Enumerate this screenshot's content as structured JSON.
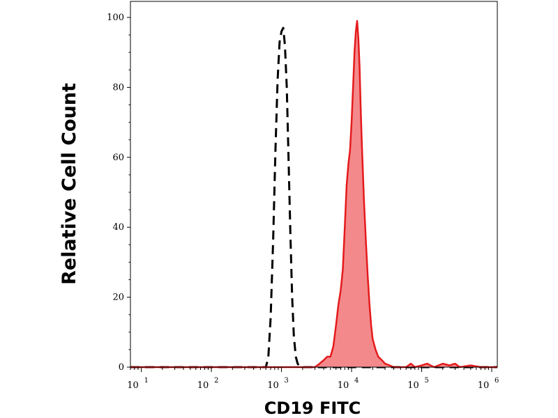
{
  "chart_data": {
    "type": "area",
    "title": "",
    "xlabel": "CD19 FITC",
    "ylabel": "Relative Cell Count",
    "x_scale": "log10",
    "xlim": [
      7,
      1200000
    ],
    "ylim": [
      0,
      100
    ],
    "x_ticks": [
      {
        "base": "10",
        "exp": "1",
        "value": 10
      },
      {
        "base": "10",
        "exp": "2",
        "value": 100
      },
      {
        "base": "10",
        "exp": "3",
        "value": 1000
      },
      {
        "base": "10",
        "exp": "4",
        "value": 10000
      },
      {
        "base": "10",
        "exp": "5",
        "value": 100000
      },
      {
        "base": "10",
        "exp": "6",
        "value": 1000000
      }
    ],
    "y_ticks": [
      "0",
      "20",
      "40",
      "60",
      "80",
      "100"
    ],
    "grid": false,
    "series": [
      {
        "style": "dashed",
        "color": "#000000",
        "fill": "none",
        "points": [
          [
            7,
            0
          ],
          [
            600,
            0
          ],
          [
            650,
            3
          ],
          [
            700,
            14
          ],
          [
            760,
            36
          ],
          [
            820,
            62
          ],
          [
            880,
            82
          ],
          [
            940,
            93
          ],
          [
            1000,
            96
          ],
          [
            1060,
            97
          ],
          [
            1120,
            92
          ],
          [
            1190,
            80
          ],
          [
            1260,
            60
          ],
          [
            1340,
            38
          ],
          [
            1420,
            20
          ],
          [
            1500,
            9
          ],
          [
            1600,
            3
          ],
          [
            1700,
            1
          ],
          [
            1850,
            0
          ],
          [
            7000,
            0
          ],
          [
            1200000,
            0
          ]
        ]
      },
      {
        "style": "solid",
        "color": "#e41a1c",
        "fill": "#f4898b",
        "points": [
          [
            7,
            0
          ],
          [
            3000,
            0
          ],
          [
            3500,
            1
          ],
          [
            4000,
            2
          ],
          [
            4500,
            3
          ],
          [
            5000,
            3
          ],
          [
            5500,
            6
          ],
          [
            6000,
            12
          ],
          [
            6500,
            18
          ],
          [
            7000,
            22
          ],
          [
            7500,
            28
          ],
          [
            8000,
            40
          ],
          [
            8500,
            52
          ],
          [
            9000,
            58
          ],
          [
            9500,
            62
          ],
          [
            10000,
            70
          ],
          [
            10500,
            80
          ],
          [
            11000,
            90
          ],
          [
            11500,
            96
          ],
          [
            12000,
            99
          ],
          [
            12500,
            94
          ],
          [
            13000,
            86
          ],
          [
            13500,
            74
          ],
          [
            14000,
            64
          ],
          [
            15000,
            48
          ],
          [
            16000,
            36
          ],
          [
            17000,
            26
          ],
          [
            18000,
            18
          ],
          [
            19000,
            12
          ],
          [
            20000,
            8
          ],
          [
            22000,
            5
          ],
          [
            24000,
            3
          ],
          [
            27000,
            2
          ],
          [
            30000,
            1
          ],
          [
            35000,
            0.5
          ],
          [
            40000,
            0
          ],
          [
            60000,
            0
          ],
          [
            70000,
            1
          ],
          [
            80000,
            0
          ],
          [
            100000,
            0.5
          ],
          [
            120000,
            1
          ],
          [
            150000,
            0
          ],
          [
            200000,
            1
          ],
          [
            250000,
            0.5
          ],
          [
            300000,
            1
          ],
          [
            350000,
            0
          ],
          [
            500000,
            0.5
          ],
          [
            700000,
            0
          ],
          [
            1200000,
            0
          ]
        ]
      }
    ]
  }
}
